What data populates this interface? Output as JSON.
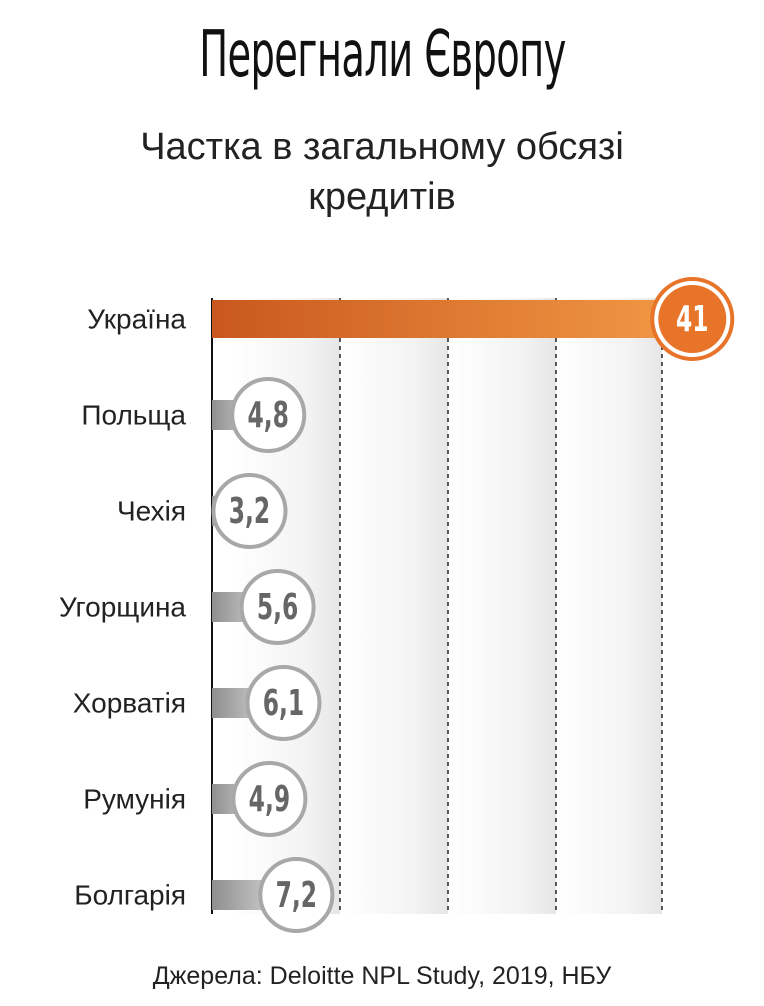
{
  "chart_data": {
    "type": "hbar",
    "title": "Перегнали Європу",
    "subtitle": "Частка в загальному обсязі кредитів",
    "source": "Джерела: Deloitte NPL Study, 2019, НБУ",
    "categories": [
      "Україна",
      "Польща",
      "Чехія",
      "Угорщина",
      "Хорватія",
      "Румунія",
      "Болгарія"
    ],
    "values": [
      41,
      4.8,
      3.2,
      5.6,
      6.1,
      4.9,
      7.2
    ],
    "value_labels": [
      "41",
      "4,8",
      "3,2",
      "5,6",
      "6,1",
      "4,9",
      "7,2"
    ],
    "colors": [
      "#e8742a",
      "#a8a8a8",
      "#a8a8a8",
      "#a8a8a8",
      "#a8a8a8",
      "#a8a8a8",
      "#a8a8a8"
    ],
    "xlim": [
      0,
      42
    ]
  }
}
